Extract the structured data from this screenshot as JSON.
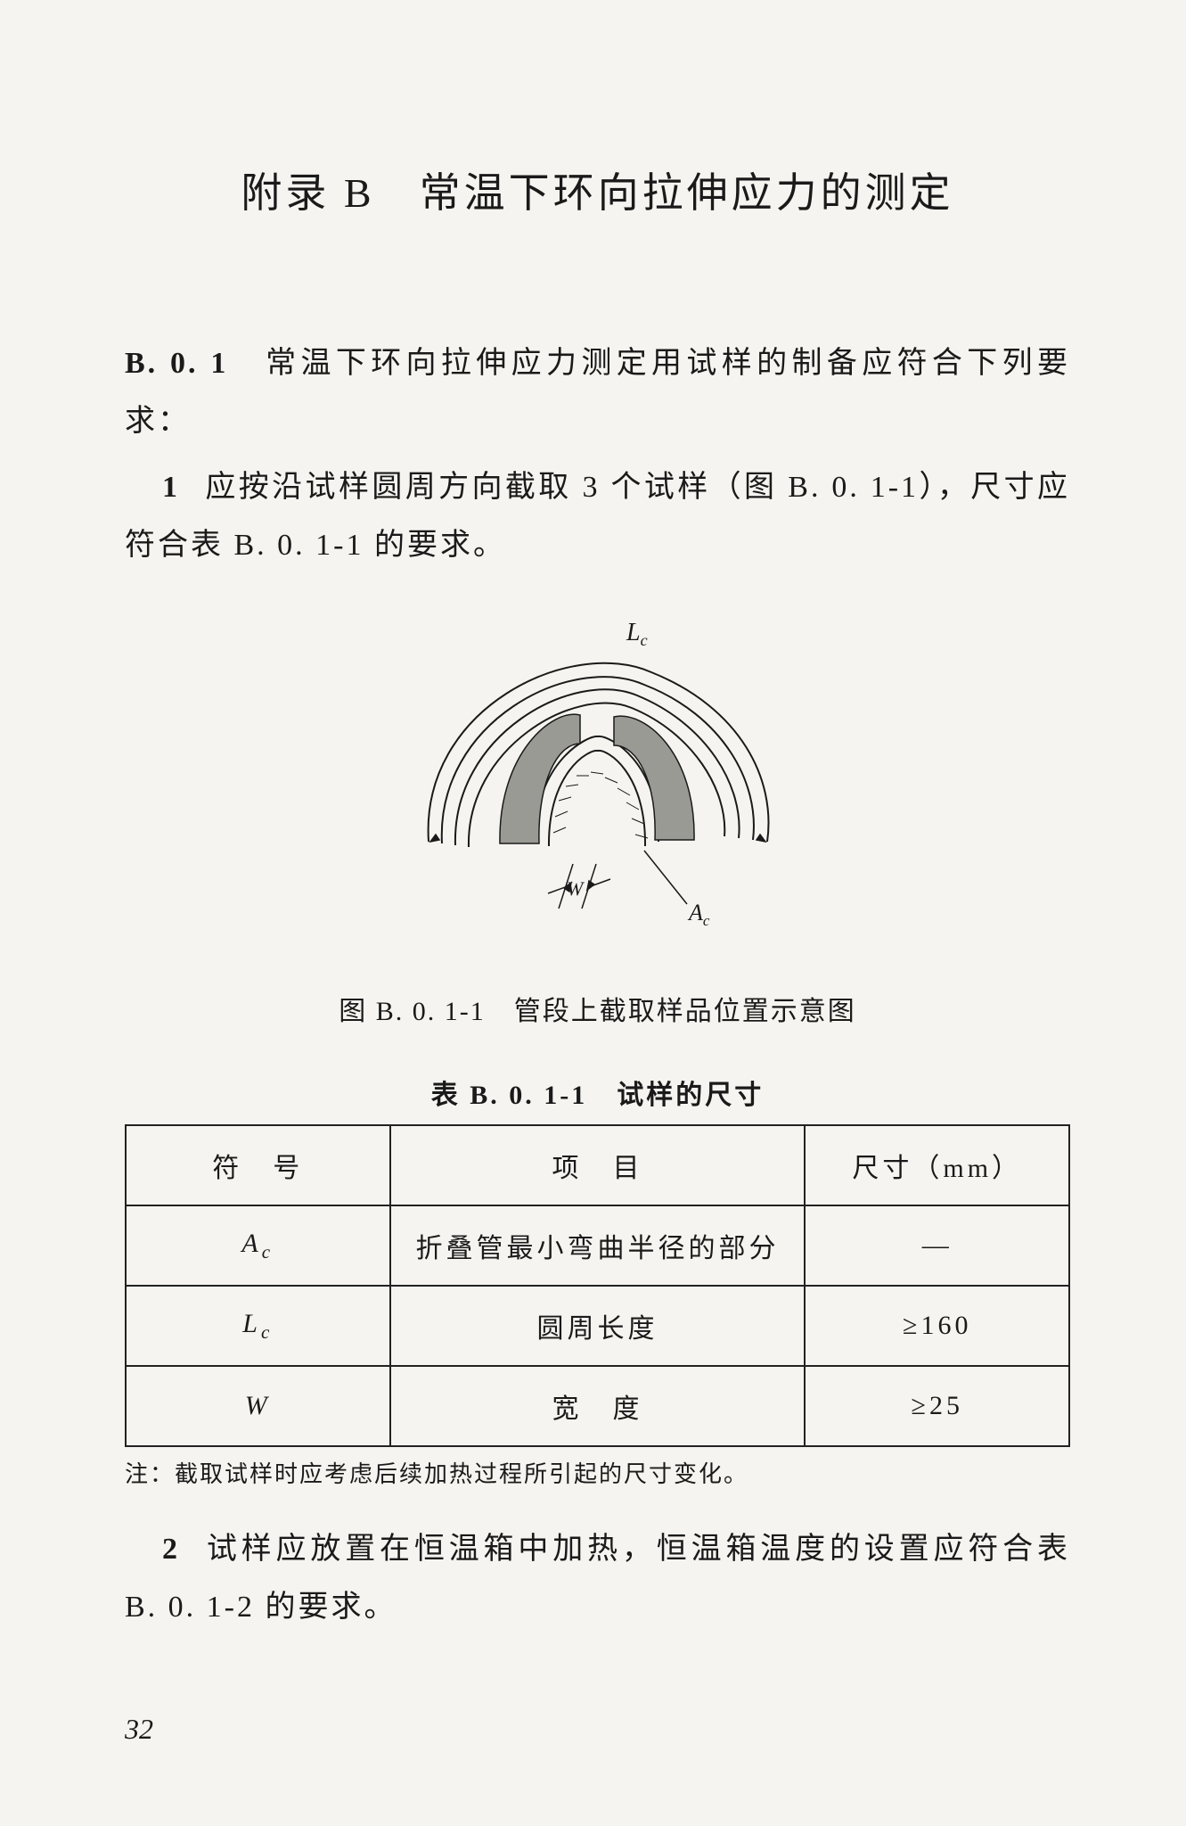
{
  "title": "附录 B　常温下环向拉伸应力的测定",
  "section_b01": {
    "label": "B. 0. 1",
    "intro": "　常温下环向拉伸应力测定用试样的制备应符合下列要求：",
    "item1_num": "1",
    "item1_text": "应按沿试样圆周方向截取 3 个试样（图 B. 0. 1-1），尺寸应符合表 B. 0. 1-1 的要求。",
    "item2_num": "2",
    "item2_text": "试样应放置在恒温箱中加热，恒温箱温度的设置应符合表 B. 0. 1-2 的要求。"
  },
  "figure": {
    "caption": "图 B. 0. 1-1　管段上截取样品位置示意图",
    "label_Lc": "L",
    "label_Lc_sub": "c",
    "label_Ac": "A",
    "label_Ac_sub": "c",
    "label_W": "W",
    "stroke": "#1a1a1a",
    "fill_hatch": "#9a9a94",
    "bg": "#f5f4f0"
  },
  "table": {
    "caption": "表 B. 0. 1-1　试样的尺寸",
    "headers": [
      "符　号",
      "项　目",
      "尺寸（mm）"
    ],
    "rows": [
      {
        "sym_html": "<span class='italic-sym'>A</span><span class='italic-sym sub'>c</span>",
        "item": "折叠管最小弯曲半径的部分",
        "size": "—"
      },
      {
        "sym_html": "<span class='italic-sym'>L</span><span class='italic-sym sub'>c</span>",
        "item": "圆周长度",
        "size": "≥160"
      },
      {
        "sym_html": "<span class='italic-sym'>W</span>",
        "item": "宽　度",
        "size": "≥25"
      }
    ],
    "note": "注：截取试样时应考虑后续加热过程所引起的尺寸变化。",
    "col_widths": [
      "28%",
      "44%",
      "28%"
    ]
  },
  "page_number": "32"
}
